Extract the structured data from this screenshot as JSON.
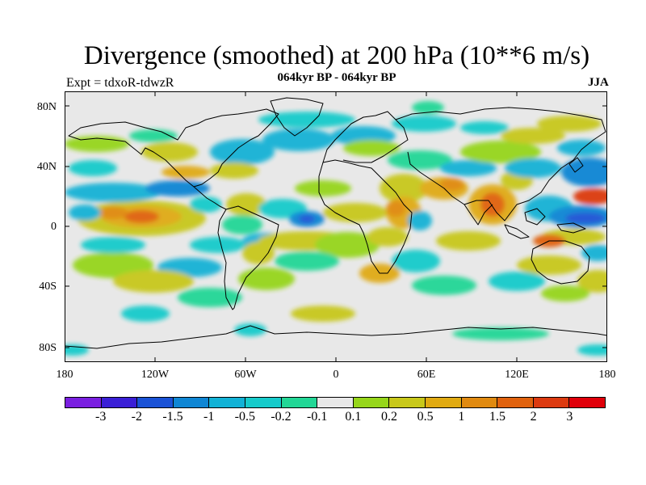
{
  "header": {
    "title": "Divergence (smoothed) at 200 hPa (10**6 m/s)",
    "subtitle": "064kyr BP - 064kyr BP",
    "experiment": "Expt = tdxoR-tdwzR",
    "season": "JJA"
  },
  "axes": {
    "lat_ticks": [
      "80N",
      "40N",
      "0",
      "40S",
      "80S"
    ],
    "lon_ticks": [
      "180",
      "120W",
      "60W",
      "0",
      "60E",
      "120E",
      "180"
    ]
  },
  "colorbar": {
    "colors": [
      "#7a1fe0",
      "#3a1fd6",
      "#1a52d6",
      "#0f86d4",
      "#12b2d6",
      "#16cbcb",
      "#22d796",
      "#e8e8e8",
      "#96d61a",
      "#c8c81a",
      "#e0aa12",
      "#e08a10",
      "#e0620e",
      "#dc3a10",
      "#e0000a"
    ],
    "labels": [
      "-3",
      "-2",
      "-1.5",
      "-1",
      "-0.5",
      "-0.2",
      "-0.1",
      "0.1",
      "0.2",
      "0.5",
      "1",
      "1.5",
      "2",
      "3"
    ]
  },
  "map_colors": {
    "ocean_background": "#e8e8e8",
    "coastline": "#000000"
  }
}
